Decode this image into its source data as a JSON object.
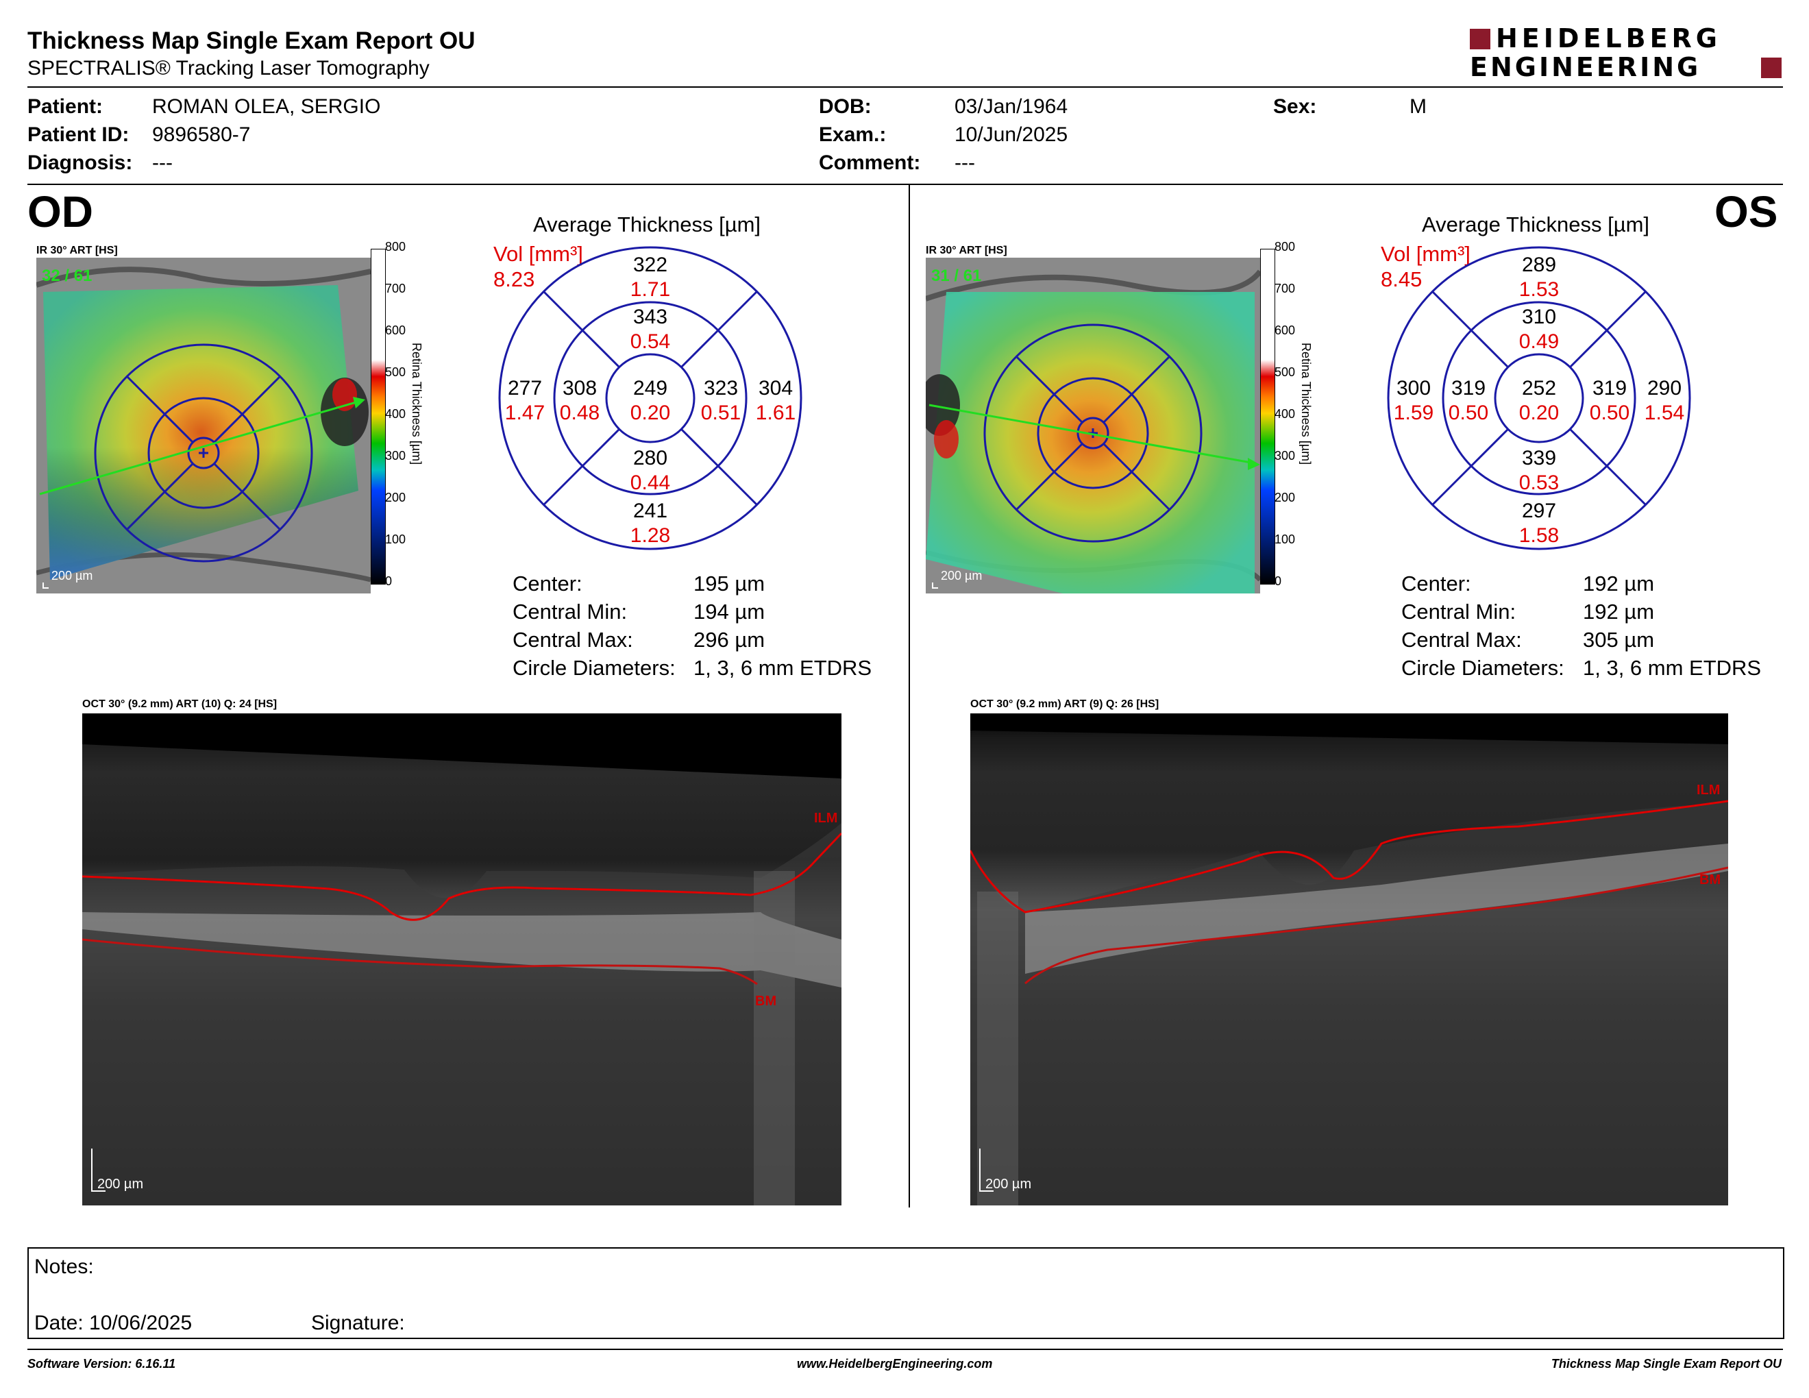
{
  "header": {
    "title": "Thickness Map Single Exam Report OU",
    "subtitle": "SPECTRALIS® Tracking Laser Tomography",
    "logo_line1": "HEIDELBERG",
    "logo_line2": "ENGINEERING",
    "brand_color": "#8b1a2b"
  },
  "patient": {
    "name_label": "Patient:",
    "name": "ROMAN OLEA, SERGIO",
    "id_label": "Patient ID:",
    "id": "9896580-7",
    "diagnosis_label": "Diagnosis:",
    "diagnosis": "---",
    "dob_label": "DOB:",
    "dob": "03/Jan/1964",
    "exam_label": "Exam.:",
    "exam": "10/Jun/2025",
    "comment_label": "Comment:",
    "comment": "---",
    "sex_label": "Sex:",
    "sex": "M"
  },
  "od": {
    "eye": "OD",
    "ir_label": "IR 30° ART [HS]",
    "ir_counter": "32 / 61",
    "scale": "200 µm",
    "colorbar_ticks": [
      "800",
      "700",
      "600",
      "500",
      "400",
      "300",
      "200",
      "100",
      "0"
    ],
    "colorbar_title": "Retina  Thickness [µm]",
    "avg_title": "Average Thickness [µm]",
    "vol_label": "Vol [mm³]",
    "vol": "8.23",
    "sectors": {
      "superior_outer": {
        "t": "322",
        "v": "1.71"
      },
      "superior_inner": {
        "t": "343",
        "v": "0.54"
      },
      "center": {
        "t": "249",
        "v": "0.20"
      },
      "inferior_inner": {
        "t": "280",
        "v": "0.44"
      },
      "inferior_outer": {
        "t": "241",
        "v": "1.28"
      },
      "left_outer": {
        "t": "277",
        "v": "1.47"
      },
      "left_inner": {
        "t": "308",
        "v": "0.48"
      },
      "right_inner": {
        "t": "323",
        "v": "0.51"
      },
      "right_outer": {
        "t": "304",
        "v": "1.61"
      }
    },
    "stats": [
      {
        "label": "Center:",
        "value": "195 µm"
      },
      {
        "label": "Central Min:",
        "value": "194 µm"
      },
      {
        "label": "Central Max:",
        "value": "296 µm"
      },
      {
        "label": "Circle Diameters:",
        "value": "1, 3, 6 mm ETDRS"
      }
    ],
    "oct_label": "OCT 30° (9.2 mm) ART (10) Q: 24 [HS]",
    "oct_scale": "200 µm",
    "ilm": "ILM",
    "bm": "BM"
  },
  "os": {
    "eye": "OS",
    "ir_label": "IR 30° ART [HS]",
    "ir_counter": "31 / 61",
    "scale": "200 µm",
    "colorbar_ticks": [
      "800",
      "700",
      "600",
      "500",
      "400",
      "300",
      "200",
      "100",
      "0"
    ],
    "colorbar_title": "Retina  Thickness [µm]",
    "avg_title": "Average Thickness [µm]",
    "vol_label": "Vol [mm³]",
    "vol": "8.45",
    "sectors": {
      "superior_outer": {
        "t": "289",
        "v": "1.53"
      },
      "superior_inner": {
        "t": "310",
        "v": "0.49"
      },
      "center": {
        "t": "252",
        "v": "0.20"
      },
      "inferior_inner": {
        "t": "339",
        "v": "0.53"
      },
      "inferior_outer": {
        "t": "297",
        "v": "1.58"
      },
      "left_outer": {
        "t": "300",
        "v": "1.59"
      },
      "left_inner": {
        "t": "319",
        "v": "0.50"
      },
      "right_inner": {
        "t": "319",
        "v": "0.50"
      },
      "right_outer": {
        "t": "290",
        "v": "1.54"
      }
    },
    "stats": [
      {
        "label": "Center:",
        "value": "192 µm"
      },
      {
        "label": "Central Min:",
        "value": "192 µm"
      },
      {
        "label": "Central Max:",
        "value": "305 µm"
      },
      {
        "label": "Circle Diameters:",
        "value": "1, 3, 6 mm ETDRS"
      }
    ],
    "oct_label": "OCT 30° (9.2 mm) ART (9) Q: 26 [HS]",
    "oct_scale": "200 µm",
    "ilm": "ILM",
    "bm": "BM"
  },
  "notes": {
    "notes_label": "Notes:",
    "date_label": "Date: 10/06/2025",
    "signature_label": "Signature:"
  },
  "footer": {
    "software": "Software Version: 6.16.11",
    "website": "www.HeidelbergEngineering.com",
    "report": "Thickness Map Single Exam Report OU"
  },
  "colors": {
    "accent_red": "#e00000",
    "ring_blue": "#1a1aa6",
    "arrow_green": "#22dd22"
  }
}
